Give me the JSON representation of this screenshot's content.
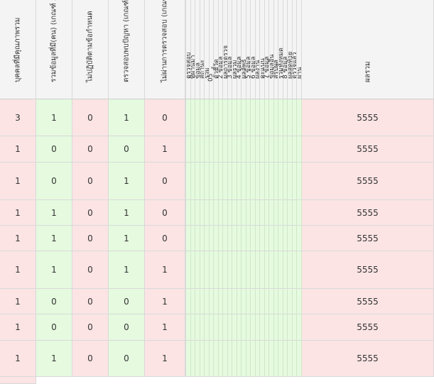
{
  "table": {
    "headers": [
      {
        "label": "บุคคลที่มีคุณภาพรวม",
        "kind": "pink"
      },
      {
        "label": "รวมข้อมูลที่มี(คน) (เกณฑ์ 5)",
        "kind": "green"
      },
      {
        "label": "ไม่ปฏิบัติตามข้อกำหนด",
        "kind": "pink"
      },
      {
        "label": "ตรวจสอบพบปัญหา (เกณฑ์ 20)",
        "kind": "green"
      },
      {
        "label": "ไม่ผ่านการตรวจสอบ (เกณฑ์ 40)",
        "kind": "pink"
      }
    ],
    "narrow_headers": [
      "ตรวจสอบ",
      "ที่ผ่านมา",
      "ข้อมูล",
      "สถานะ",
      "รวม",
      "05",
      "ตัวชี้วัด",
      "2 ข้อมูล",
      "ผลการตรวจ",
      "3 ข้อมูล",
      "ผลรวม",
      "4 ข้อมูล",
      "ผลลัพธ์",
      "5 ข้อมูล",
      "6 ข้อมูล",
      "ผลงาน",
      "คะแนน",
      "7 ข้อมูล",
      "ข้อมูลอื่น",
      "สรุปผล",
      "รวมทั้งหมด",
      "8 ข้อมูล",
      "ผลสุดท้าย",
      "ตรวจแล้ว",
      "ผ่าน"
    ],
    "last_header": "ผลรวม",
    "rows": [
      {
        "values": [
          "3",
          "1",
          "0",
          "1",
          "0"
        ],
        "total": "5555"
      },
      {
        "values": [
          "1",
          "0",
          "0",
          "0",
          "1"
        ],
        "total": "5555"
      },
      {
        "values": [
          "1",
          "0",
          "0",
          "1",
          "0"
        ],
        "total": "5555"
      },
      {
        "values": [
          "1",
          "1",
          "0",
          "1",
          "0"
        ],
        "total": "5555"
      },
      {
        "values": [
          "1",
          "1",
          "0",
          "1",
          "0"
        ],
        "total": "5555"
      },
      {
        "values": [
          "1",
          "1",
          "0",
          "1",
          "1"
        ],
        "total": "5555"
      },
      {
        "values": [
          "1",
          "0",
          "0",
          "0",
          "1"
        ],
        "total": "5555"
      },
      {
        "values": [
          "1",
          "0",
          "0",
          "0",
          "1"
        ],
        "total": "5555"
      },
      {
        "values": [
          "1",
          "1",
          "0",
          "0",
          "1"
        ],
        "total": "5555"
      }
    ]
  },
  "colors": {
    "pink": "#fce4e4",
    "green": "#e5fadf",
    "header_bg": "#f4f4f4",
    "border": "#d9d9d9"
  }
}
